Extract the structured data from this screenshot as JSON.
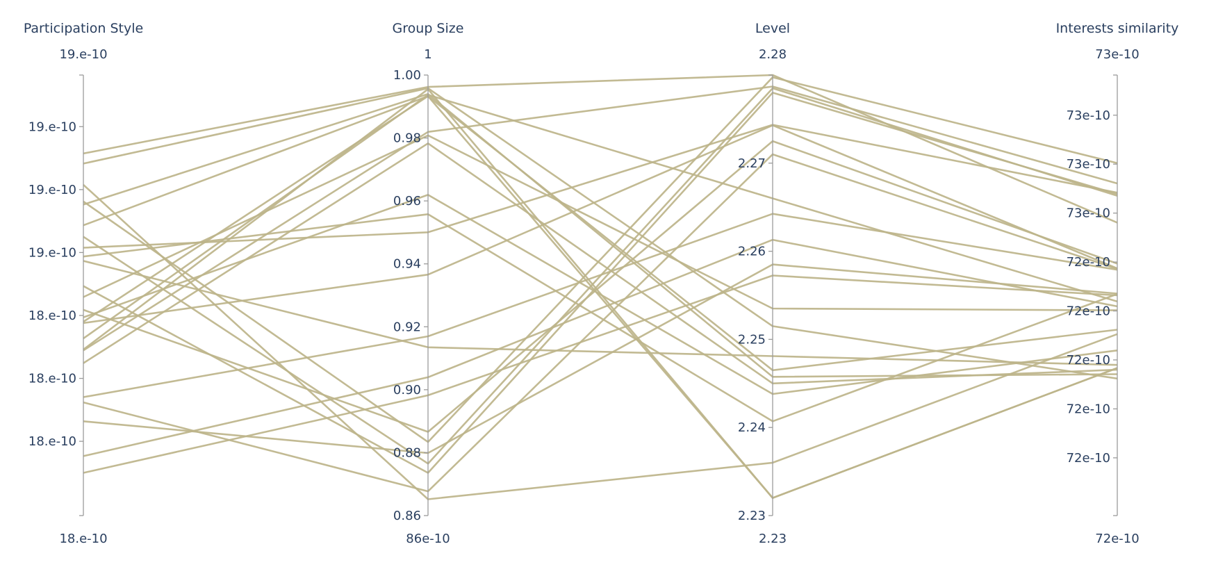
{
  "chart_data": {
    "type": "parallel_coordinates",
    "line_color": "#bdb48a",
    "dimensions": [
      {
        "label": "Participation Style",
        "range_max_label": "19.e-10",
        "range_min_label": "18.e-10",
        "ticks": [
          "19.e-10",
          "19.e-10",
          "19.e-10",
          "18.e-10",
          "18.e-10",
          "18.e-10"
        ]
      },
      {
        "label": "Group Size",
        "range": [
          0.86,
          1.0
        ],
        "range_max_label": "1",
        "range_min_label": "86e-10",
        "ticks": [
          "1.00",
          "0.98",
          "0.96",
          "0.94",
          "0.92",
          "0.90",
          "0.88",
          "0.86"
        ],
        "tick_values": [
          1.0,
          0.98,
          0.96,
          0.94,
          0.92,
          0.9,
          0.88,
          0.86
        ]
      },
      {
        "label": "Level",
        "range": [
          2.23,
          2.28
        ],
        "range_max_label": "2.28",
        "range_min_label": "2.23",
        "ticks": [
          "2.27",
          "2.26",
          "2.25",
          "2.24",
          "2.23"
        ],
        "tick_values": [
          2.27,
          2.26,
          2.25,
          2.24,
          2.23
        ]
      },
      {
        "label": "Interests similarity",
        "range_max_label": "73e-10",
        "range_min_label": "72e-10",
        "ticks": [
          "73e-10",
          "73e-10",
          "73e-10",
          "72e-10",
          "72e-10",
          "72e-10",
          "72e-10",
          "72e-10"
        ]
      }
    ],
    "lines": [
      [
        0.822,
        0.973,
        1.0,
        0.665
      ],
      [
        0.713,
        0.167,
        0.995,
        0.8
      ],
      [
        0.633,
        0.118,
        0.97,
        0.726
      ],
      [
        0.521,
        0.097,
        0.96,
        0.73
      ],
      [
        0.375,
        0.871,
        0.974,
        0.754
      ],
      [
        0.608,
        0.643,
        0.887,
        0.733
      ],
      [
        0.437,
        0.547,
        0.886,
        0.561
      ],
      [
        0.467,
        0.19,
        0.85,
        0.572
      ],
      [
        0.257,
        0.055,
        0.82,
        0.56
      ],
      [
        0.402,
        0.955,
        0.72,
        0.486
      ],
      [
        0.269,
        0.407,
        0.685,
        0.558
      ],
      [
        0.135,
        0.314,
        0.626,
        0.475
      ],
      [
        0.214,
        0.142,
        0.57,
        0.504
      ],
      [
        0.097,
        0.273,
        0.545,
        0.5
      ],
      [
        0.799,
        0.97,
        0.43,
        0.311
      ],
      [
        0.496,
        0.863,
        0.47,
        0.466
      ],
      [
        0.578,
        0.382,
        0.362,
        0.342
      ],
      [
        0.706,
        0.957,
        0.315,
        0.321
      ],
      [
        0.659,
        0.952,
        0.33,
        0.422
      ],
      [
        0.346,
        0.845,
        0.3,
        0.331
      ],
      [
        0.45,
        0.728,
        0.276,
        0.375
      ],
      [
        0.588,
        0.684,
        0.214,
        0.503
      ],
      [
        0.751,
        0.037,
        0.12,
        0.412
      ],
      [
        0.377,
        0.968,
        0.04,
        0.335
      ],
      [
        0.44,
        0.952,
        0.04,
        0.335
      ]
    ]
  }
}
